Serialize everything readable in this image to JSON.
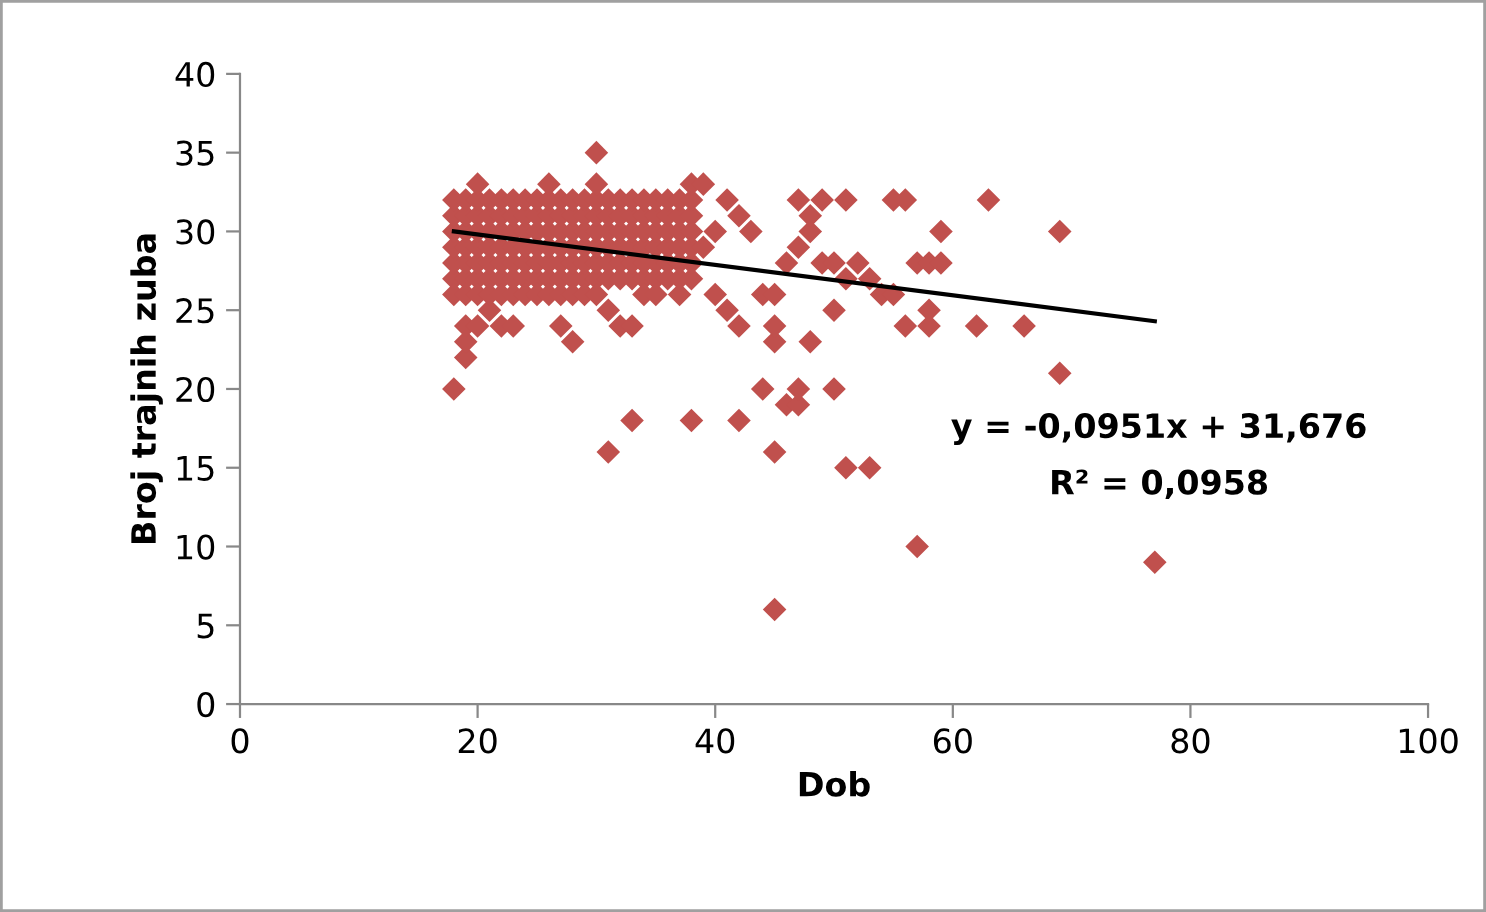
{
  "chart_data": {
    "type": "scatter",
    "xlabel": "Dob",
    "ylabel": "Broj trajnih zuba",
    "xlim": [
      0,
      100
    ],
    "ylim": [
      0,
      40
    ],
    "xticks": [
      0,
      20,
      40,
      60,
      80,
      100
    ],
    "yticks": [
      0,
      5,
      10,
      15,
      20,
      25,
      30,
      35,
      40
    ],
    "grid": false,
    "legend": false,
    "annotations": [
      "y = -0,0951x + 31,676",
      "R² = 0,0958"
    ],
    "series": [
      {
        "marker": "diamond",
        "color": "#c0504d",
        "x": [
          18,
          18,
          18,
          18,
          18,
          18,
          19,
          19,
          19,
          19,
          19,
          19,
          20,
          20,
          20,
          20,
          20,
          20,
          21,
          21,
          21,
          21,
          21,
          21,
          22,
          22,
          22,
          22,
          22,
          22,
          23,
          23,
          23,
          23,
          23,
          23,
          24,
          24,
          24,
          24,
          24,
          24,
          25,
          25,
          25,
          25,
          25,
          25,
          26,
          26,
          26,
          26,
          26,
          26,
          27,
          27,
          27,
          27,
          27,
          27,
          28,
          28,
          28,
          28,
          28,
          28,
          29,
          29,
          29,
          29,
          29,
          29,
          30,
          30,
          30,
          30,
          30,
          30,
          31,
          31,
          31,
          31,
          31,
          31,
          32,
          32,
          32,
          32,
          32,
          32,
          33,
          33,
          33,
          33,
          33,
          33,
          34,
          34,
          34,
          34,
          34,
          34,
          35,
          35,
          35,
          35,
          35,
          35,
          36,
          36,
          36,
          36,
          36,
          36,
          37,
          37,
          37,
          37,
          37,
          37,
          38,
          38,
          38,
          38,
          38,
          38,
          18,
          18,
          19,
          19,
          19,
          19,
          20,
          20,
          21,
          21,
          22,
          22,
          23,
          23,
          24,
          25,
          26,
          27,
          27,
          28,
          28,
          29,
          30,
          30,
          30,
          20,
          26,
          31,
          31,
          32,
          33,
          33,
          34,
          35,
          37,
          38,
          38,
          39,
          39,
          40,
          40,
          41,
          41,
          42,
          42,
          42,
          43,
          44,
          44,
          45,
          45,
          45,
          45,
          45,
          46,
          46,
          47,
          47,
          47,
          47,
          48,
          48,
          48,
          49,
          49,
          50,
          50,
          50,
          51,
          51,
          51,
          52,
          53,
          53,
          54,
          55,
          55,
          56,
          56,
          57,
          57,
          58,
          58,
          58,
          59,
          59,
          62,
          63,
          66,
          69,
          69,
          77
        ],
        "values": [
          27,
          28,
          29,
          30,
          31,
          32,
          27,
          28,
          29,
          30,
          31,
          32,
          27,
          28,
          29,
          30,
          31,
          32,
          27,
          28,
          29,
          30,
          31,
          32,
          27,
          28,
          29,
          30,
          31,
          32,
          27,
          28,
          29,
          30,
          31,
          32,
          27,
          28,
          29,
          30,
          31,
          32,
          27,
          28,
          29,
          30,
          31,
          32,
          27,
          28,
          29,
          30,
          31,
          32,
          27,
          28,
          29,
          30,
          31,
          32,
          27,
          28,
          29,
          30,
          31,
          32,
          27,
          28,
          29,
          30,
          31,
          32,
          27,
          28,
          29,
          30,
          31,
          32,
          27,
          28,
          29,
          30,
          31,
          32,
          27,
          28,
          29,
          30,
          31,
          32,
          27,
          28,
          29,
          30,
          31,
          32,
          27,
          28,
          29,
          30,
          31,
          32,
          27,
          28,
          29,
          30,
          31,
          32,
          27,
          28,
          29,
          30,
          31,
          32,
          27,
          28,
          29,
          30,
          31,
          32,
          27,
          28,
          29,
          30,
          31,
          32,
          20,
          26,
          22,
          23,
          24,
          26,
          24,
          26,
          25,
          26,
          24,
          26,
          24,
          26,
          26,
          26,
          26,
          24,
          26,
          23,
          26,
          26,
          26,
          33,
          35,
          33,
          33,
          16,
          25,
          24,
          24,
          18,
          26,
          26,
          26,
          18,
          33,
          29,
          33,
          30,
          26,
          25,
          32,
          18,
          24,
          31,
          30,
          20,
          26,
          6,
          16,
          23,
          24,
          26,
          19,
          28,
          19,
          20,
          29,
          32,
          23,
          30,
          31,
          28,
          32,
          20,
          25,
          28,
          15,
          27,
          32,
          28,
          15,
          27,
          26,
          26,
          32,
          24,
          32,
          10,
          28,
          24,
          25,
          28,
          28,
          30,
          24,
          32,
          24,
          21,
          30,
          9
        ]
      },
      {
        "type": "line",
        "color": "#000000",
        "x": [
          18,
          77
        ],
        "values": [
          30.0,
          24.3
        ]
      }
    ]
  }
}
